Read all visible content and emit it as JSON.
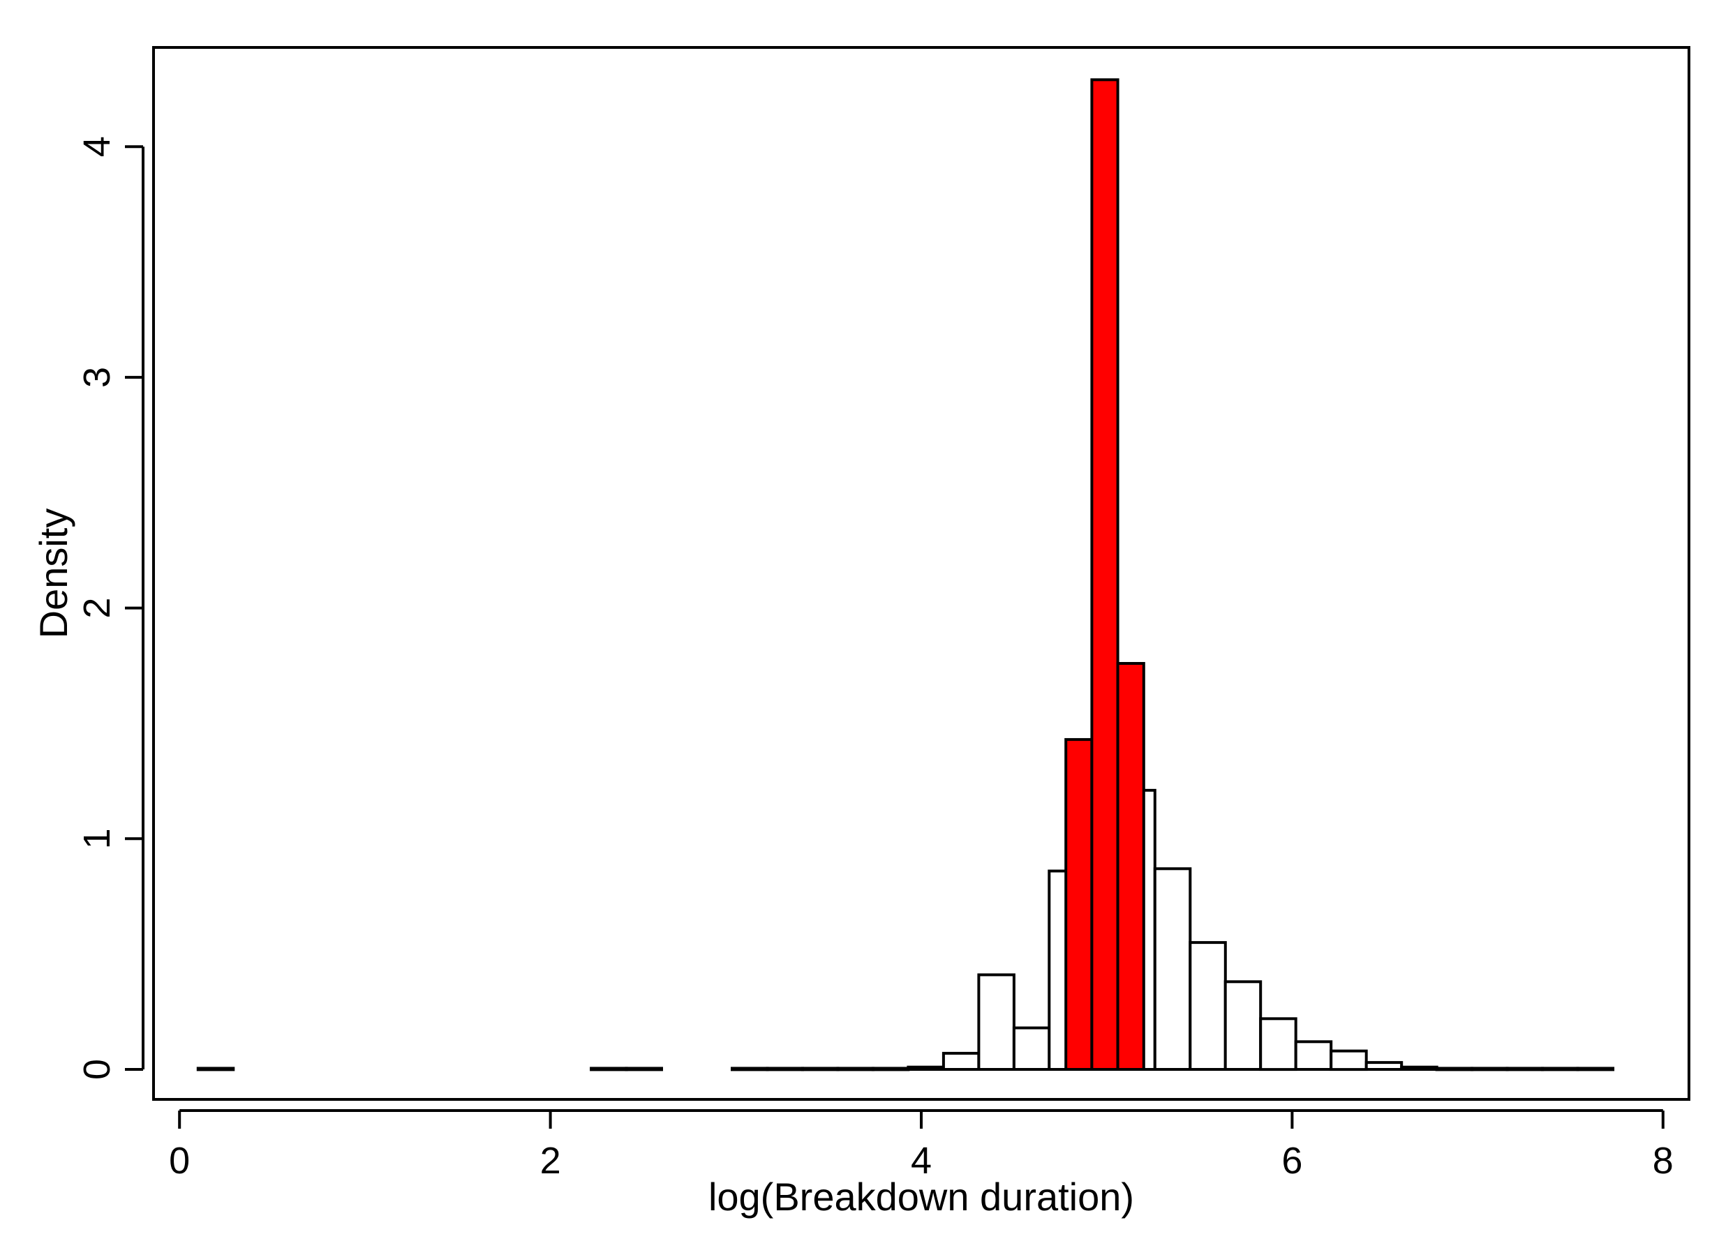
{
  "chart_data": {
    "type": "bar",
    "title": "",
    "xlabel": "log(Breakdown duration)",
    "ylabel": "Density",
    "xlim": [
      -0.14,
      8.14
    ],
    "ylim": [
      -0.13,
      4.43
    ],
    "xticks": [
      0,
      2,
      4,
      6,
      8
    ],
    "yticks": [
      0,
      1,
      2,
      3,
      4
    ],
    "grid": false,
    "legend": "none",
    "series": [
      {
        "fill": "#ffffff",
        "bins": [
          {
            "x0": 0.1,
            "x1": 0.29,
            "y": 0.005
          },
          {
            "x0": 2.22,
            "x1": 2.41,
            "y": 0.005
          },
          {
            "x0": 2.41,
            "x1": 2.6,
            "y": 0.005
          },
          {
            "x0": 2.98,
            "x1": 3.17,
            "y": 0.005
          },
          {
            "x0": 3.17,
            "x1": 3.36,
            "y": 0.005
          },
          {
            "x0": 3.36,
            "x1": 3.55,
            "y": 0.005
          },
          {
            "x0": 3.55,
            "x1": 3.74,
            "y": 0.005
          },
          {
            "x0": 3.74,
            "x1": 3.93,
            "y": 0.005
          },
          {
            "x0": 3.93,
            "x1": 4.12,
            "y": 0.01
          },
          {
            "x0": 4.12,
            "x1": 4.31,
            "y": 0.07
          },
          {
            "x0": 4.31,
            "x1": 4.5,
            "y": 0.41
          },
          {
            "x0": 4.5,
            "x1": 4.69,
            "y": 0.18
          },
          {
            "x0": 4.69,
            "x1": 4.88,
            "y": 0.86
          },
          {
            "x0": 4.88,
            "x1": 5.07,
            "y": 0.1
          },
          {
            "x0": 5.07,
            "x1": 5.26,
            "y": 1.21
          },
          {
            "x0": 5.26,
            "x1": 5.45,
            "y": 0.87
          },
          {
            "x0": 5.45,
            "x1": 5.64,
            "y": 0.55
          },
          {
            "x0": 5.64,
            "x1": 5.83,
            "y": 0.38
          },
          {
            "x0": 5.83,
            "x1": 6.02,
            "y": 0.22
          },
          {
            "x0": 6.02,
            "x1": 6.21,
            "y": 0.12
          },
          {
            "x0": 6.21,
            "x1": 6.4,
            "y": 0.08
          },
          {
            "x0": 6.4,
            "x1": 6.59,
            "y": 0.03
          },
          {
            "x0": 6.59,
            "x1": 6.78,
            "y": 0.01
          },
          {
            "x0": 6.78,
            "x1": 6.97,
            "y": 0.005
          },
          {
            "x0": 6.97,
            "x1": 7.16,
            "y": 0.005
          },
          {
            "x0": 7.16,
            "x1": 7.35,
            "y": 0.005
          },
          {
            "x0": 7.35,
            "x1": 7.54,
            "y": 0.005
          },
          {
            "x0": 7.54,
            "x1": 7.73,
            "y": 0.005
          }
        ]
      },
      {
        "fill": "#ff0000",
        "bins": [
          {
            "x0": 4.78,
            "x1": 4.92,
            "y": 1.43
          },
          {
            "x0": 4.92,
            "x1": 5.06,
            "y": 4.29
          },
          {
            "x0": 5.06,
            "x1": 5.2,
            "y": 1.76
          }
        ]
      }
    ]
  }
}
